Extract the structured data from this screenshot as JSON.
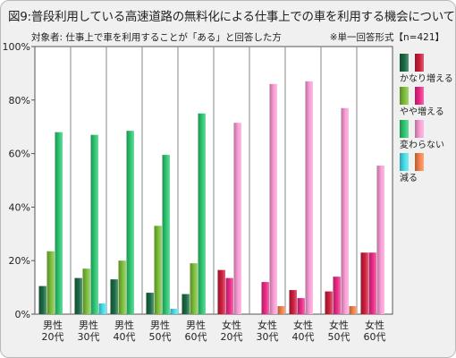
{
  "title": "図9:普段利用している高速道路の無料化による仕事上での車を利用する機会について",
  "subtitle": "対象者: 仕事上で車を利用することが「ある」と回答した方",
  "note": "※単一回答形式【n=421】",
  "chart_data": {
    "type": "bar",
    "categories": [
      [
        "男性",
        "20代"
      ],
      [
        "男性",
        "30代"
      ],
      [
        "男性",
        "40代"
      ],
      [
        "男性",
        "50代"
      ],
      [
        "男性",
        "60代"
      ],
      [
        "女性",
        "20代"
      ],
      [
        "女性",
        "30代"
      ],
      [
        "女性",
        "40代"
      ],
      [
        "女性",
        "50代"
      ],
      [
        "女性",
        "60代"
      ]
    ],
    "series": [
      {
        "name": "かなり増える",
        "values": [
          10.5,
          13.5,
          13,
          8,
          7.5,
          16.5,
          0,
          9,
          8.5,
          23
        ]
      },
      {
        "name": "やや増える",
        "values": [
          23.5,
          17,
          20,
          33,
          19,
          13.5,
          12,
          6,
          14,
          23
        ]
      },
      {
        "name": "変わらない",
        "values": [
          68,
          67,
          68.5,
          59.5,
          75,
          71.5,
          86,
          87,
          77,
          55.5
        ]
      },
      {
        "name": "減る",
        "values": [
          0,
          4,
          0,
          2,
          0,
          0,
          3,
          0,
          3,
          0
        ]
      }
    ],
    "ylim": [
      0,
      100
    ],
    "yticks": [
      "0%",
      "20%",
      "40%",
      "60%",
      "80%",
      "100%"
    ],
    "colors": {
      "male": {
        "かなり増える": "#1a6b45",
        "やや増える": "#7cbf3a",
        "変わらない": "#2ec873",
        "減る": "#46e0ee"
      },
      "female": {
        "かなり増える": "#cc1f3c",
        "やや増える": "#ee2a8a",
        "変わらない": "#fb9ed6",
        "減る": "#f5824c"
      }
    },
    "grid": "vertical separators",
    "legend_position": "right"
  }
}
